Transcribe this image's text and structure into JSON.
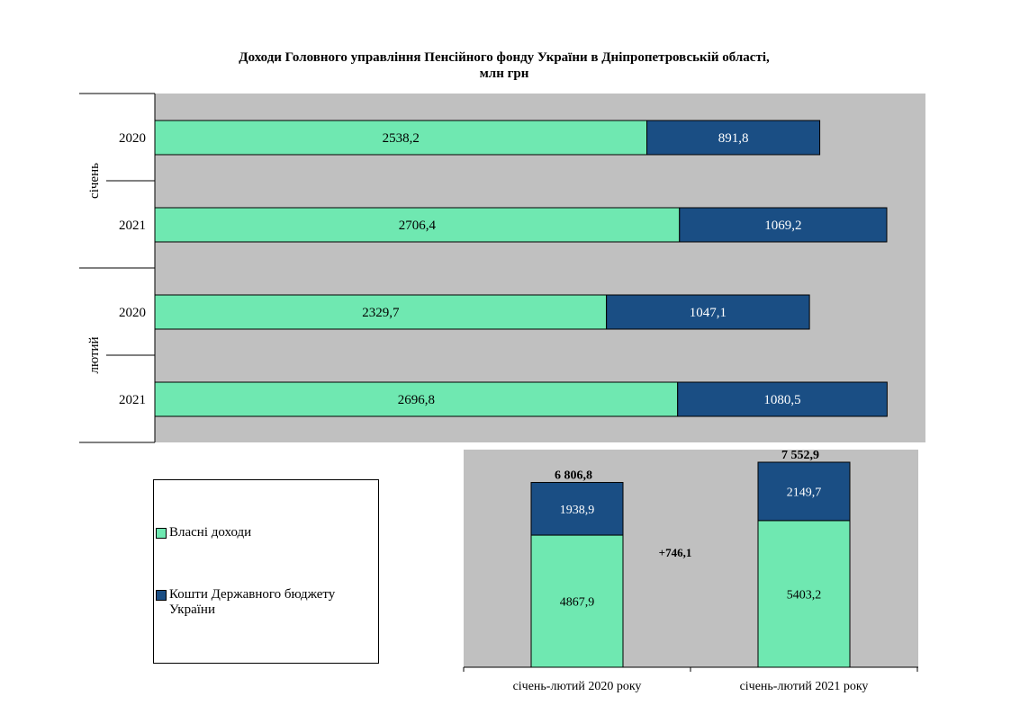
{
  "title_line1": "Доходи Головного управління Пенсійного фонду України в Дніпропетровській області,",
  "title_line2": "млн грн",
  "colors": {
    "own": "#6FE8B1",
    "state": "#1A4E84",
    "plot_bg": "#C0C0C0"
  },
  "chart_data": [
    {
      "type": "bar",
      "orientation": "horizontal",
      "stacked": true,
      "groups": [
        {
          "label": "січень",
          "rows": [
            {
              "year": "2020",
              "own": 2538.2,
              "state": 891.8,
              "own_label": "2538,2",
              "state_label": "891,8"
            },
            {
              "year": "2021",
              "own": 2706.4,
              "state": 1069.2,
              "own_label": "2706,4",
              "state_label": "1069,2"
            }
          ]
        },
        {
          "label": "лютий",
          "rows": [
            {
              "year": "2020",
              "own": 2329.7,
              "state": 1047.1,
              "own_label": "2329,7",
              "state_label": "1047,1"
            },
            {
              "year": "2021",
              "own": 2696.8,
              "state": 1080.5,
              "own_label": "2696,8",
              "state_label": "1080,5"
            }
          ]
        }
      ],
      "series": [
        {
          "name": "Власні доходи",
          "key": "own"
        },
        {
          "name": "Кошти Державного бюджету України",
          "key": "state"
        }
      ]
    },
    {
      "type": "bar",
      "orientation": "vertical",
      "stacked": true,
      "categories": [
        "січень-лютий 2020 року",
        "січень-лютий 2021 року"
      ],
      "series": [
        {
          "name": "Власні доходи",
          "values": [
            4867.9,
            5403.2
          ],
          "labels": [
            "4867,9",
            "5403,2"
          ]
        },
        {
          "name": "Кошти Державного бюджету України",
          "values": [
            1938.9,
            2149.7
          ],
          "labels": [
            "1938,9",
            "2149,7"
          ]
        }
      ],
      "totals": [
        "6 806,8",
        "7 552,9"
      ],
      "difference_label": "+746,1"
    }
  ],
  "legend": {
    "own_label": "Власні доходи",
    "state_label_line1": "Кошти Державного бюджету",
    "state_label_line2": "України"
  }
}
